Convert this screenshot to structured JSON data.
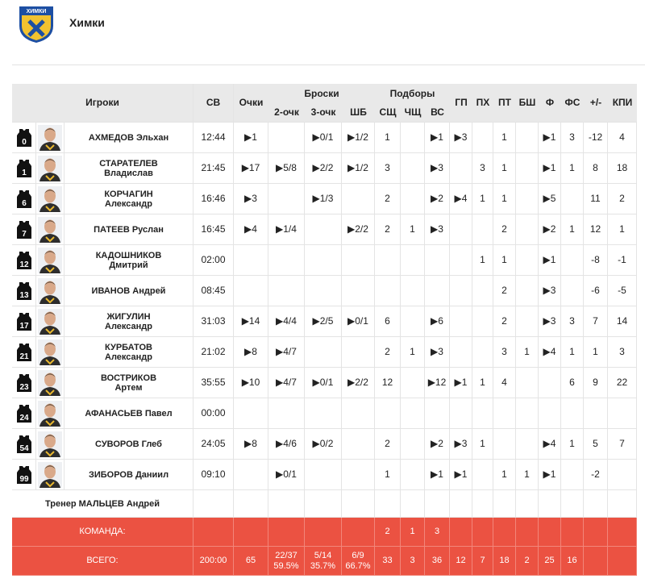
{
  "header": {
    "logo_text": "ХИМКИ",
    "team": "Химки"
  },
  "table": {
    "columns": {
      "players": "Игроки",
      "minutes": "СВ",
      "points": "Очки",
      "shots": {
        "title": "Броски",
        "sub": [
          "2-очк",
          "3-очк",
          "ШБ"
        ]
      },
      "rebounds": {
        "title": "Подборы",
        "sub": [
          "СЩ",
          "ЧЩ",
          "ВС"
        ]
      },
      "other": [
        "ГП",
        "ПХ",
        "ПТ",
        "БШ",
        "Ф",
        "ФС",
        "+/-",
        "КПИ"
      ]
    },
    "rows": [
      {
        "number": "0",
        "name": [
          "АХМЕДОВ Эльхан"
        ],
        "cells": [
          "12:44",
          "▶1",
          null,
          "▶0/1",
          "▶1/2",
          "1",
          null,
          "▶1",
          "▶3",
          null,
          "1",
          null,
          "▶1",
          "3",
          "-12",
          "4"
        ]
      },
      {
        "number": "1",
        "name": [
          "СТАРАТЕЛЕВ",
          "Владислав"
        ],
        "cells": [
          "21:45",
          "▶17",
          "▶5/8",
          "▶2/2",
          "▶1/2",
          "3",
          null,
          "▶3",
          null,
          "3",
          "1",
          null,
          "▶1",
          "1",
          "8",
          "18"
        ]
      },
      {
        "number": "6",
        "name": [
          "КОРЧАГИН",
          "Александр"
        ],
        "cells": [
          "16:46",
          "▶3",
          null,
          "▶1/3",
          null,
          "2",
          null,
          "▶2",
          "▶4",
          "1",
          "1",
          null,
          "▶5",
          null,
          "11",
          "2"
        ]
      },
      {
        "number": "7",
        "name": [
          "ПАТЕЕВ Руслан"
        ],
        "cells": [
          "16:45",
          "▶4",
          "▶1/4",
          null,
          "▶2/2",
          "2",
          "1",
          "▶3",
          null,
          null,
          "2",
          null,
          "▶2",
          "1",
          "12",
          "1"
        ]
      },
      {
        "number": "12",
        "name": [
          "КАДОШНИКОВ",
          "Дмитрий"
        ],
        "cells": [
          "02:00",
          null,
          null,
          null,
          null,
          null,
          null,
          null,
          null,
          "1",
          "1",
          null,
          "▶1",
          null,
          "-8",
          "-1"
        ]
      },
      {
        "number": "13",
        "name": [
          "ИВАНОВ Андрей"
        ],
        "cells": [
          "08:45",
          null,
          null,
          null,
          null,
          null,
          null,
          null,
          null,
          null,
          "2",
          null,
          "▶3",
          null,
          "-6",
          "-5"
        ]
      },
      {
        "number": "17",
        "name": [
          "ЖИГУЛИН",
          "Александр"
        ],
        "cells": [
          "31:03",
          "▶14",
          "▶4/4",
          "▶2/5",
          "▶0/1",
          "6",
          null,
          "▶6",
          null,
          null,
          "2",
          null,
          "▶3",
          "3",
          "7",
          "14"
        ]
      },
      {
        "number": "21",
        "name": [
          "КУРБАТОВ",
          "Александр"
        ],
        "cells": [
          "21:02",
          "▶8",
          "▶4/7",
          null,
          null,
          "2",
          "1",
          "▶3",
          null,
          null,
          "3",
          "1",
          "▶4",
          "1",
          "1",
          "3"
        ]
      },
      {
        "number": "23",
        "name": [
          "ВОСТРИКОВ",
          "Артем"
        ],
        "cells": [
          "35:55",
          "▶10",
          "▶4/7",
          "▶0/1",
          "▶2/2",
          "12",
          null,
          "▶12",
          "▶1",
          "1",
          "4",
          null,
          null,
          "6",
          "9",
          "22"
        ]
      },
      {
        "number": "24",
        "name": [
          "АФАНАСЬЕВ Павел"
        ],
        "cells": [
          "00:00",
          null,
          null,
          null,
          null,
          null,
          null,
          null,
          null,
          null,
          null,
          null,
          null,
          null,
          null,
          null
        ]
      },
      {
        "number": "54",
        "name": [
          "СУВОРОВ Глеб"
        ],
        "cells": [
          "24:05",
          "▶8",
          "▶4/6",
          "▶0/2",
          null,
          "2",
          null,
          "▶2",
          "▶3",
          "1",
          null,
          null,
          "▶4",
          "1",
          "5",
          "7"
        ]
      },
      {
        "number": "99",
        "name": [
          "ЗИБОРОВ Даниил"
        ],
        "cells": [
          "09:10",
          null,
          "▶0/1",
          null,
          null,
          "1",
          null,
          "▶1",
          "▶1",
          null,
          "1",
          "1",
          "▶1",
          null,
          "-2",
          null
        ]
      }
    ],
    "coach": "Тренер МАЛЬЦЕВ Андрей",
    "team_row": {
      "label": "КОМАНДА:",
      "cells": [
        null,
        null,
        null,
        null,
        null,
        "2",
        "1",
        "3",
        null,
        null,
        null,
        null,
        null,
        null,
        null,
        null
      ]
    },
    "total_row": {
      "label": "ВСЕГО:",
      "cells": [
        "200:00",
        "65",
        [
          "22/37",
          "59.5%"
        ],
        [
          "5/14",
          "35.7%"
        ],
        [
          "6/9",
          "66.7%"
        ],
        "33",
        "3",
        "36",
        "12",
        "7",
        "18",
        "2",
        "25",
        "16",
        null,
        null
      ]
    }
  }
}
